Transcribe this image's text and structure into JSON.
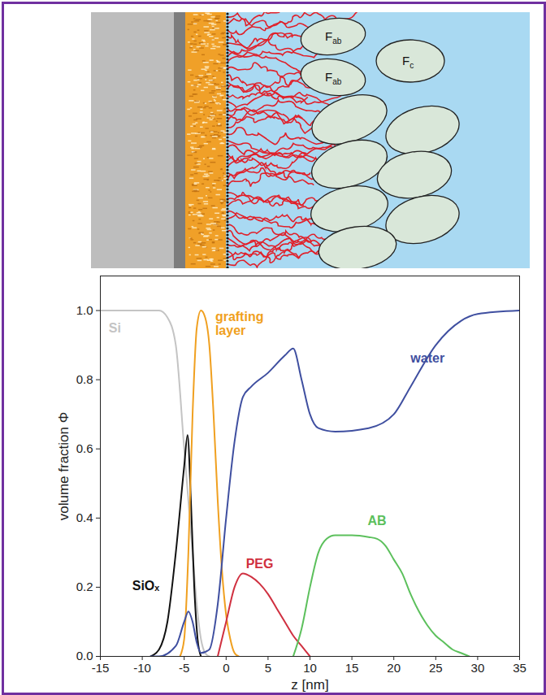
{
  "diagram": {
    "labels": [
      {
        "text": "F",
        "subscript": "ab"
      },
      {
        "text": "F",
        "subscript": "ab"
      },
      {
        "text": "F",
        "subscript": "c"
      }
    ]
  },
  "chart_data": {
    "type": "line",
    "xlabel": "z [nm]",
    "ylabel": "volume fraction Φ",
    "xlim": [
      -15,
      35
    ],
    "xticks": [
      -15,
      -10,
      -5,
      0,
      5,
      10,
      15,
      20,
      25,
      30,
      35
    ],
    "ylim": [
      0,
      1.1
    ],
    "yticks": [
      {
        "value": 0,
        "label": "0.0"
      },
      {
        "value": 0.2,
        "label": "0.2"
      },
      {
        "value": 0.4,
        "label": "0.4"
      },
      {
        "value": 0.6,
        "label": "0.6"
      },
      {
        "value": 0.8,
        "label": "0.8"
      },
      {
        "value": 1,
        "label": "1.0"
      }
    ],
    "grid": false,
    "series": [
      {
        "name": "Si",
        "color": "#c4c4c4",
        "x": [
          -15,
          -8,
          -7,
          -6,
          -5,
          -4.5,
          -4,
          -3.5,
          -3,
          -2.5,
          -2
        ],
        "values": [
          1,
          1,
          0.98,
          0.9,
          0.6,
          0.45,
          0.3,
          0.15,
          0.05,
          0.01,
          0
        ]
      },
      {
        "name": "SiOₓ",
        "color": "#111111",
        "x": [
          -9,
          -8,
          -7,
          -6,
          -5,
          -4.6,
          -4.2,
          -3.8,
          -3.4,
          -3
        ],
        "values": [
          0,
          0.02,
          0.1,
          0.3,
          0.55,
          0.64,
          0.45,
          0.2,
          0.05,
          0
        ]
      },
      {
        "name": "grafting layer",
        "color": "#f0a020",
        "x": [
          -5.5,
          -5,
          -4.5,
          -4,
          -3.5,
          -3,
          -2.5,
          -2,
          -1.5,
          -1,
          -0.5,
          0,
          0.5,
          1,
          1.5
        ],
        "values": [
          0,
          0.05,
          0.3,
          0.7,
          0.95,
          1,
          0.98,
          0.9,
          0.7,
          0.45,
          0.25,
          0.12,
          0.05,
          0.01,
          0
        ]
      },
      {
        "name": "PEG",
        "color": "#d03040",
        "x": [
          -1,
          0,
          1,
          2,
          3,
          4,
          5,
          6,
          7,
          8,
          9,
          10
        ],
        "values": [
          0,
          0.1,
          0.2,
          0.24,
          0.23,
          0.21,
          0.18,
          0.14,
          0.1,
          0.06,
          0.03,
          0
        ]
      },
      {
        "name": "AB",
        "color": "#5cc05c",
        "x": [
          8,
          9,
          10,
          11,
          12,
          13,
          15,
          17,
          18,
          19,
          20,
          21,
          22,
          23,
          24,
          25,
          26,
          27,
          28,
          29
        ],
        "values": [
          0,
          0.08,
          0.2,
          0.3,
          0.34,
          0.35,
          0.35,
          0.345,
          0.34,
          0.32,
          0.28,
          0.24,
          0.18,
          0.13,
          0.09,
          0.06,
          0.04,
          0.02,
          0.01,
          0
        ]
      },
      {
        "name": "water",
        "color": "#3f4fa0",
        "x": [
          -9,
          -8,
          -6,
          -5,
          -4.5,
          -4,
          -3.5,
          -3,
          -2,
          -1,
          0,
          1,
          2,
          3,
          5,
          7,
          8,
          9,
          10,
          11,
          13,
          17,
          20,
          22,
          25,
          28,
          30,
          35
        ],
        "values": [
          0,
          0,
          0.03,
          0.1,
          0.13,
          0.1,
          0.04,
          0.01,
          0.02,
          0.15,
          0.4,
          0.62,
          0.75,
          0.78,
          0.82,
          0.87,
          0.89,
          0.8,
          0.7,
          0.66,
          0.65,
          0.66,
          0.7,
          0.78,
          0.9,
          0.97,
          0.99,
          1
        ]
      }
    ]
  }
}
